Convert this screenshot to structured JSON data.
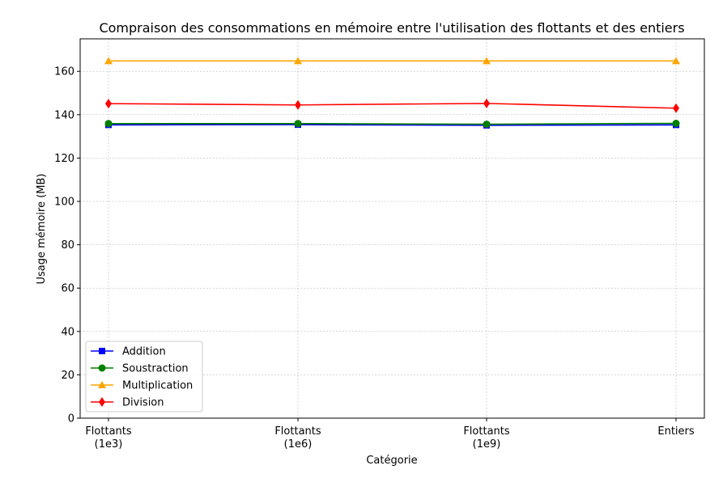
{
  "chart_data": {
    "type": "line",
    "title": "Compraison des consommations en mémoire entre l'utilisation des flottants et des entiers",
    "xlabel": "Catégorie",
    "ylabel": "Usage mémoire (MB)",
    "categories": [
      [
        "Flottants",
        "(1e3)"
      ],
      [
        "Flottants",
        "(1e6)"
      ],
      [
        "Flottants",
        "(1e9)"
      ],
      [
        "Entiers"
      ]
    ],
    "ylim": [
      0,
      175
    ],
    "yticks": [
      0,
      20,
      40,
      60,
      80,
      100,
      120,
      140,
      160
    ],
    "grid": true,
    "legend_position": "lower-left",
    "series": [
      {
        "name": "Addition",
        "values": [
          135.3,
          135.4,
          135.1,
          135.3
        ],
        "color": "#0000ff",
        "marker": "square"
      },
      {
        "name": "Soustraction",
        "values": [
          135.9,
          135.9,
          135.6,
          136.0
        ],
        "color": "#008000",
        "marker": "circle"
      },
      {
        "name": "Multiplication",
        "values": [
          164.8,
          164.8,
          164.8,
          164.8
        ],
        "color": "#ffa500",
        "marker": "triangle"
      },
      {
        "name": "Division",
        "values": [
          145.1,
          144.5,
          145.2,
          143.0
        ],
        "color": "#ff0000",
        "marker": "diamond"
      }
    ]
  }
}
